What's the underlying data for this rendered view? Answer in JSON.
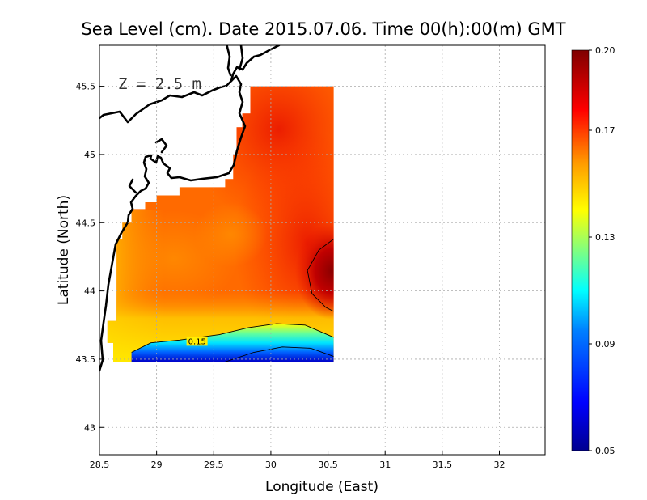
{
  "chart_data": {
    "type": "heatmap",
    "title": "Sea Level (cm). Date 2015.07.06. Time 00(h):00(m) GMT",
    "xlabel": "Longitude (East)",
    "ylabel": "Latitude (North)",
    "annotation": "Z = 2.5 m",
    "xlim": [
      28.5,
      32.4
    ],
    "ylim": [
      42.8,
      45.8
    ],
    "x_ticks": [
      28.5,
      29,
      29.5,
      30,
      30.5,
      31,
      31.5,
      32
    ],
    "x_tick_labels": [
      "28.5",
      "29",
      "29.5",
      "30",
      "30.5",
      "31",
      "31.5",
      "32"
    ],
    "y_ticks": [
      43,
      43.5,
      44,
      44.5,
      45,
      45.5
    ],
    "y_tick_labels": [
      "43",
      "43.5",
      "44",
      "44.5",
      "45",
      "45.5"
    ],
    "grid": true,
    "domain_x": [
      28.62,
      30.55
    ],
    "domain_y": [
      43.48,
      45.5
    ],
    "contours": [
      {
        "level": 0.15,
        "label": "0.15",
        "points": [
          [
            28.78,
            43.55
          ],
          [
            28.95,
            43.62
          ],
          [
            29.2,
            43.64
          ],
          [
            29.55,
            43.68
          ],
          [
            29.8,
            43.73
          ],
          [
            30.05,
            43.76
          ],
          [
            30.3,
            43.75
          ],
          [
            30.55,
            43.66
          ]
        ]
      },
      {
        "level": 0.13,
        "label": "",
        "points": [
          [
            29.6,
            43.48
          ],
          [
            29.85,
            43.55
          ],
          [
            30.1,
            43.59
          ],
          [
            30.35,
            43.58
          ],
          [
            30.55,
            43.52
          ]
        ]
      },
      {
        "level": 0.19,
        "label": "",
        "points": [
          [
            30.55,
            44.38
          ],
          [
            30.42,
            44.3
          ],
          [
            30.32,
            44.15
          ],
          [
            30.36,
            43.98
          ],
          [
            30.48,
            43.88
          ],
          [
            30.55,
            43.85
          ]
        ]
      }
    ],
    "colorbar": {
      "min": 0.05,
      "max": 0.2,
      "ticks": [
        0.05,
        0.09,
        0.13,
        0.17,
        0.2
      ],
      "tick_labels": [
        "0.05",
        "0.09",
        "0.13",
        "0.17",
        "0.20"
      ],
      "colors": [
        "#00008f",
        "#0000ff",
        "#0080ff",
        "#00ffff",
        "#80ff80",
        "#ffff00",
        "#ff9900",
        "#ff0000",
        "#7f0000"
      ]
    }
  }
}
